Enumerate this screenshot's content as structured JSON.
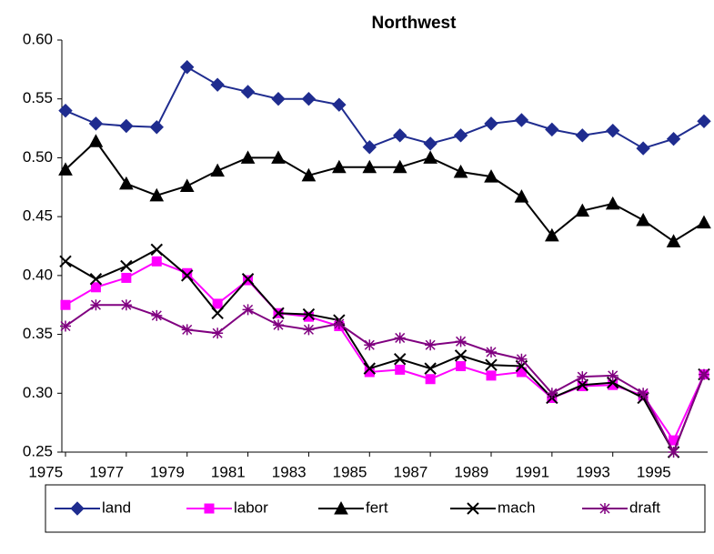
{
  "chart_data": {
    "type": "line",
    "title": "Northwest",
    "x": [
      1975,
      1976,
      1977,
      1978,
      1979,
      1980,
      1981,
      1982,
      1983,
      1984,
      1985,
      1986,
      1987,
      1988,
      1989,
      1990,
      1991,
      1992,
      1993,
      1994,
      1995,
      1996
    ],
    "xlim": [
      1975,
      1996
    ],
    "xticks": [
      1975,
      1977,
      1979,
      1981,
      1983,
      1985,
      1987,
      1989,
      1991,
      1993,
      1995
    ],
    "ylim": [
      0.25,
      0.6
    ],
    "yticks": [
      {
        "value": 0.25,
        "label": "0.25"
      },
      {
        "value": 0.3,
        "label": "0.30"
      },
      {
        "value": 0.35,
        "label": "0.35"
      },
      {
        "value": 0.4,
        "label": "0.40"
      },
      {
        "value": 0.45,
        "label": "0.45"
      },
      {
        "value": 0.5,
        "label": "0.50"
      },
      {
        "value": 0.55,
        "label": "0.55"
      },
      {
        "value": 0.6,
        "label": "0.60"
      }
    ],
    "grid": false,
    "legend": "bottom",
    "series": [
      {
        "name": "land",
        "color": "#1f2c8f",
        "marker": "diamond",
        "values": [
          0.54,
          0.529,
          0.527,
          0.526,
          0.577,
          0.562,
          0.556,
          0.55,
          0.55,
          0.545,
          0.509,
          0.519,
          0.512,
          0.519,
          0.529,
          0.532,
          0.524,
          0.519,
          0.523,
          0.508,
          0.516,
          0.531
        ]
      },
      {
        "name": "labor",
        "color": "#ff00ff",
        "marker": "square",
        "values": [
          0.375,
          0.39,
          0.398,
          0.412,
          0.402,
          0.376,
          0.396,
          0.368,
          0.365,
          0.357,
          0.318,
          0.32,
          0.312,
          0.323,
          0.315,
          0.318,
          0.296,
          0.306,
          0.307,
          0.298,
          0.26,
          0.316
        ]
      },
      {
        "name": "fert",
        "color": "#000000",
        "marker": "triangle",
        "values": [
          0.49,
          0.514,
          0.478,
          0.468,
          0.476,
          0.489,
          0.5,
          0.5,
          0.485,
          0.492,
          0.492,
          0.492,
          0.5,
          0.488,
          0.484,
          0.467,
          0.434,
          0.455,
          0.461,
          0.447,
          0.429,
          0.445
        ]
      },
      {
        "name": "mach",
        "color": "#000000",
        "marker": "x",
        "values": [
          0.412,
          0.397,
          0.408,
          0.422,
          0.4,
          0.368,
          0.397,
          0.368,
          0.367,
          0.362,
          0.321,
          0.329,
          0.321,
          0.332,
          0.324,
          0.323,
          0.296,
          0.307,
          0.309,
          0.296,
          0.25,
          0.316
        ]
      },
      {
        "name": "draft",
        "color": "#800080",
        "marker": "star",
        "values": [
          0.357,
          0.375,
          0.375,
          0.366,
          0.354,
          0.351,
          0.371,
          0.358,
          0.354,
          0.359,
          0.341,
          0.347,
          0.341,
          0.344,
          0.335,
          0.329,
          0.3,
          0.314,
          0.315,
          0.3,
          0.25,
          0.316
        ]
      }
    ]
  }
}
